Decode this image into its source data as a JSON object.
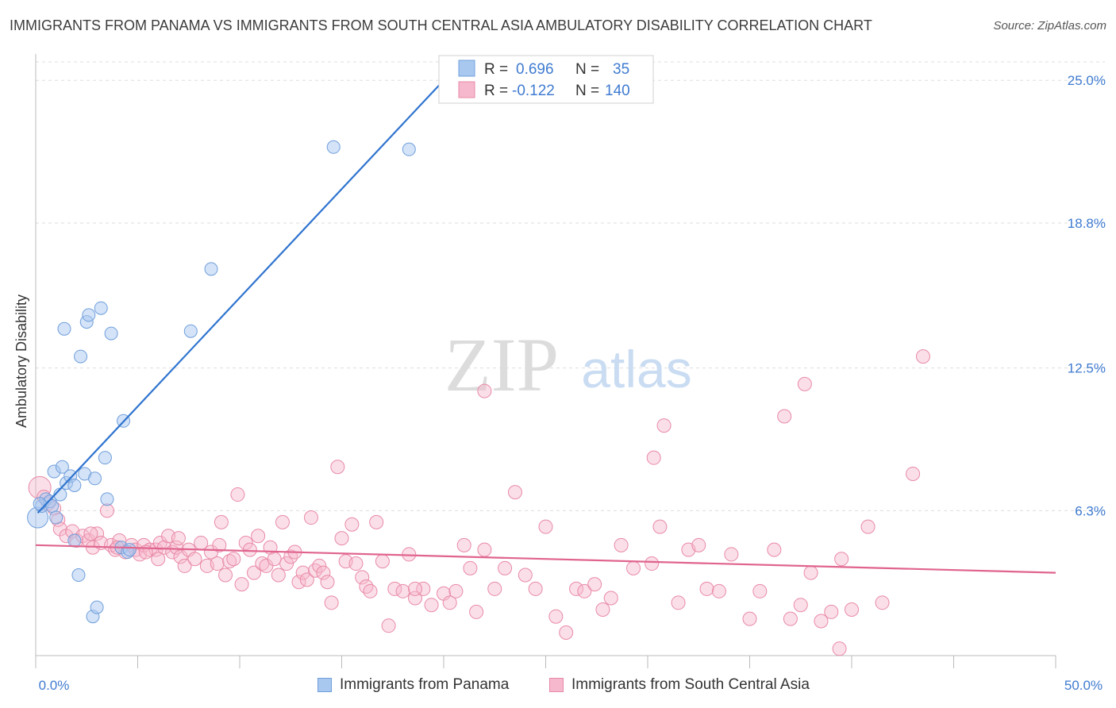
{
  "header": {
    "title": "IMMIGRANTS FROM PANAMA VS IMMIGRANTS FROM SOUTH CENTRAL ASIA AMBULATORY DISABILITY CORRELATION CHART",
    "source": "Source: ZipAtlas.com"
  },
  "watermark": {
    "zip": "ZIP",
    "atlas": "atlas"
  },
  "colors": {
    "panama_fill": "#a9c8f0",
    "panama_stroke": "#6f9fdc",
    "panama_line": "#2f74cf",
    "asia_fill": "#f6b8cc",
    "asia_stroke": "#e88aa7",
    "asia_line": "#e0648e",
    "tick_label": "#3f7bd0",
    "grid": "#dddddd"
  },
  "stats_legend": {
    "rows": [
      {
        "r_label": "R =",
        "r_value": "0.696",
        "n_label": "N =",
        "n_value": "35"
      },
      {
        "r_label": "R =",
        "r_value": "-0.122",
        "n_label": "N =",
        "n_value": "140"
      }
    ]
  },
  "chart_data": {
    "type": "scatter",
    "title": "IMMIGRANTS FROM PANAMA VS IMMIGRANTS FROM SOUTH CENTRAL ASIA AMBULATORY DISABILITY CORRELATION CHART",
    "xlabel": "",
    "ylabel": "Ambulatory Disability",
    "xlim": [
      0,
      50
    ],
    "ylim": [
      0,
      25.8
    ],
    "x_tick_labels": [
      "0.0%",
      "50.0%"
    ],
    "y_ticks": [
      6.3,
      12.5,
      18.8,
      25.0
    ],
    "y_tick_labels": [
      "6.3%",
      "12.5%",
      "18.8%",
      "25.0%"
    ],
    "grid": true,
    "legend_position": "bottom",
    "series": [
      {
        "name": "Immigrants from Panama",
        "trend": {
          "x": [
            0.1,
            20
          ],
          "y": [
            6.2,
            25.0
          ]
        },
        "points": [
          [
            0.1,
            6.0
          ],
          [
            0.3,
            6.5
          ],
          [
            0.5,
            6.8
          ],
          [
            0.7,
            6.7
          ],
          [
            0.8,
            6.5
          ],
          [
            1.0,
            6.0
          ],
          [
            0.9,
            8.0
          ],
          [
            1.2,
            7.0
          ],
          [
            1.3,
            8.2
          ],
          [
            1.5,
            7.5
          ],
          [
            1.7,
            7.8
          ],
          [
            1.9,
            7.4
          ],
          [
            1.4,
            14.2
          ],
          [
            2.2,
            13.0
          ],
          [
            2.5,
            14.5
          ],
          [
            2.6,
            14.8
          ],
          [
            3.2,
            15.1
          ],
          [
            3.7,
            14.0
          ],
          [
            4.3,
            10.2
          ],
          [
            3.4,
            8.6
          ],
          [
            2.4,
            7.9
          ],
          [
            2.9,
            7.7
          ],
          [
            3.5,
            6.8
          ],
          [
            1.9,
            5.0
          ],
          [
            2.1,
            3.5
          ],
          [
            2.8,
            1.7
          ],
          [
            3.0,
            2.1
          ],
          [
            4.2,
            4.7
          ],
          [
            4.5,
            4.5
          ],
          [
            4.6,
            4.6
          ],
          [
            7.6,
            14.1
          ],
          [
            8.6,
            16.8
          ],
          [
            14.6,
            22.1
          ],
          [
            18.3,
            22.0
          ],
          [
            0.2,
            6.6
          ]
        ]
      },
      {
        "name": "Immigrants from South Central Asia",
        "trend": {
          "x": [
            0,
            50
          ],
          "y": [
            4.8,
            3.6
          ]
        },
        "points": [
          [
            0.2,
            7.3
          ],
          [
            0.4,
            6.9
          ],
          [
            0.6,
            6.6
          ],
          [
            0.9,
            6.4
          ],
          [
            1.1,
            5.9
          ],
          [
            1.2,
            5.5
          ],
          [
            1.5,
            5.2
          ],
          [
            1.8,
            5.4
          ],
          [
            2.0,
            5.0
          ],
          [
            2.3,
            5.2
          ],
          [
            2.6,
            5.0
          ],
          [
            2.8,
            4.7
          ],
          [
            3.0,
            5.3
          ],
          [
            3.2,
            4.9
          ],
          [
            3.5,
            6.3
          ],
          [
            3.7,
            4.8
          ],
          [
            3.9,
            4.6
          ],
          [
            4.1,
            5.0
          ],
          [
            4.4,
            4.5
          ],
          [
            4.7,
            4.8
          ],
          [
            4.9,
            4.6
          ],
          [
            5.1,
            4.4
          ],
          [
            5.3,
            4.8
          ],
          [
            5.6,
            4.6
          ],
          [
            5.9,
            4.6
          ],
          [
            6.1,
            4.9
          ],
          [
            6.3,
            4.7
          ],
          [
            6.5,
            5.2
          ],
          [
            6.7,
            4.5
          ],
          [
            6.9,
            4.7
          ],
          [
            7.1,
            4.3
          ],
          [
            7.3,
            3.9
          ],
          [
            7.5,
            4.6
          ],
          [
            7.8,
            4.2
          ],
          [
            8.1,
            4.9
          ],
          [
            8.4,
            3.9
          ],
          [
            8.6,
            4.5
          ],
          [
            8.9,
            4.0
          ],
          [
            9.1,
            5.8
          ],
          [
            9.3,
            3.5
          ],
          [
            9.5,
            4.1
          ],
          [
            9.7,
            4.2
          ],
          [
            9.9,
            7.0
          ],
          [
            10.1,
            3.1
          ],
          [
            10.3,
            4.9
          ],
          [
            10.5,
            4.6
          ],
          [
            10.7,
            3.6
          ],
          [
            10.9,
            5.2
          ],
          [
            11.1,
            4.0
          ],
          [
            11.3,
            3.9
          ],
          [
            11.5,
            4.7
          ],
          [
            11.7,
            4.2
          ],
          [
            11.9,
            3.5
          ],
          [
            12.1,
            5.8
          ],
          [
            12.3,
            4.0
          ],
          [
            12.5,
            4.3
          ],
          [
            12.7,
            4.5
          ],
          [
            12.9,
            3.2
          ],
          [
            13.1,
            3.6
          ],
          [
            13.3,
            3.3
          ],
          [
            13.5,
            6.0
          ],
          [
            13.7,
            3.7
          ],
          [
            13.9,
            3.9
          ],
          [
            14.1,
            3.6
          ],
          [
            14.3,
            3.2
          ],
          [
            14.5,
            2.3
          ],
          [
            15.0,
            5.1
          ],
          [
            15.2,
            4.1
          ],
          [
            15.5,
            5.7
          ],
          [
            15.7,
            4.0
          ],
          [
            16.0,
            3.4
          ],
          [
            16.2,
            3.0
          ],
          [
            16.4,
            2.8
          ],
          [
            16.7,
            5.8
          ],
          [
            17.0,
            4.1
          ],
          [
            17.3,
            1.3
          ],
          [
            17.6,
            2.9
          ],
          [
            18.0,
            2.8
          ],
          [
            18.3,
            4.4
          ],
          [
            18.6,
            2.5
          ],
          [
            19.0,
            2.9
          ],
          [
            19.4,
            2.2
          ],
          [
            20.0,
            2.7
          ],
          [
            20.3,
            2.3
          ],
          [
            20.6,
            2.8
          ],
          [
            21.0,
            4.8
          ],
          [
            21.3,
            3.8
          ],
          [
            21.6,
            1.9
          ],
          [
            22.0,
            4.6
          ],
          [
            22.5,
            2.9
          ],
          [
            23.0,
            3.8
          ],
          [
            23.5,
            7.1
          ],
          [
            24.0,
            3.5
          ],
          [
            24.5,
            2.9
          ],
          [
            25.0,
            5.6
          ],
          [
            25.5,
            1.7
          ],
          [
            26.0,
            1.0
          ],
          [
            26.5,
            2.9
          ],
          [
            26.9,
            2.8
          ],
          [
            27.4,
            3.1
          ],
          [
            27.8,
            2.0
          ],
          [
            28.2,
            2.5
          ],
          [
            28.7,
            4.8
          ],
          [
            29.3,
            3.8
          ],
          [
            30.3,
            8.6
          ],
          [
            30.8,
            10.0
          ],
          [
            31.5,
            2.3
          ],
          [
            32.0,
            4.6
          ],
          [
            32.5,
            4.8
          ],
          [
            32.9,
            2.9
          ],
          [
            33.5,
            2.8
          ],
          [
            34.1,
            4.4
          ],
          [
            35.0,
            1.6
          ],
          [
            35.5,
            2.8
          ],
          [
            36.2,
            4.6
          ],
          [
            37.0,
            1.6
          ],
          [
            37.5,
            2.2
          ],
          [
            38.0,
            3.6
          ],
          [
            38.5,
            1.5
          ],
          [
            39.0,
            1.9
          ],
          [
            39.5,
            4.2
          ],
          [
            40.0,
            2.0
          ],
          [
            40.8,
            5.6
          ],
          [
            41.5,
            2.3
          ],
          [
            43.0,
            7.9
          ],
          [
            36.7,
            10.4
          ],
          [
            37.7,
            11.8
          ],
          [
            43.5,
            13.0
          ],
          [
            22.0,
            11.5
          ],
          [
            14.8,
            8.2
          ],
          [
            9.0,
            4.8
          ],
          [
            7.0,
            5.1
          ],
          [
            5.4,
            4.5
          ],
          [
            4.0,
            4.7
          ],
          [
            18.6,
            2.9
          ],
          [
            30.6,
            5.6
          ],
          [
            39.4,
            0.3
          ],
          [
            30.2,
            4.0
          ],
          [
            6.0,
            4.2
          ],
          [
            2.7,
            5.3
          ]
        ]
      }
    ]
  },
  "bottom_legend": {
    "items": [
      {
        "label": "Immigrants from Panama"
      },
      {
        "label": "Immigrants from South Central Asia"
      }
    ]
  }
}
